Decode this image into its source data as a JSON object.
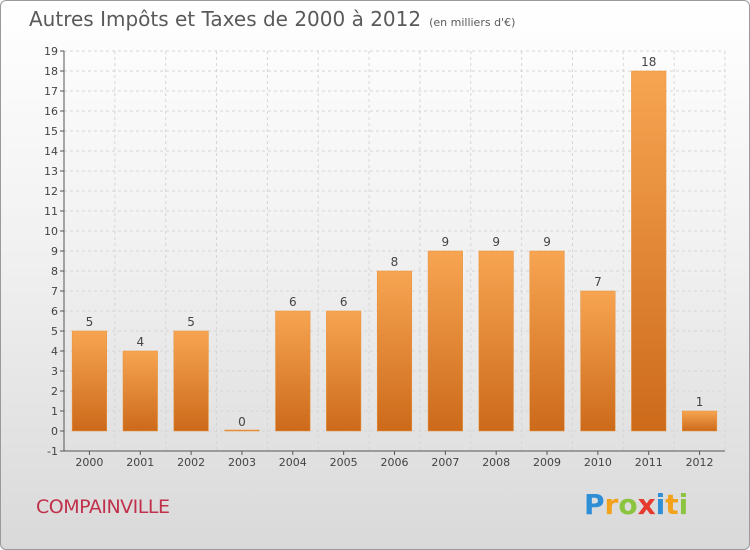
{
  "header": {
    "title": "Autres Impôts et Taxes de 2000 à 2012",
    "subtitle": "(en milliers d'€)"
  },
  "footer": {
    "commune": "COMPAINVILLE",
    "logo_letters": [
      "P",
      "r",
      "o",
      "x",
      "i",
      "t",
      "i"
    ],
    "logo_colors": [
      "#2f8fd6",
      "#f2a21b",
      "#8bc43f",
      "#e63a2e",
      "#2f8fd6",
      "#f2a21b",
      "#8bc43f"
    ]
  },
  "chart_data": {
    "type": "bar",
    "title": "Autres Impôts et Taxes de 2000 à 2012",
    "subtitle": "(en milliers d'€)",
    "xlabel": "",
    "ylabel": "",
    "categories": [
      "2000",
      "2001",
      "2002",
      "2003",
      "2004",
      "2005",
      "2006",
      "2007",
      "2008",
      "2009",
      "2010",
      "2011",
      "2012"
    ],
    "values": [
      5,
      4,
      5,
      0,
      6,
      6,
      8,
      9,
      9,
      9,
      7,
      18,
      1
    ],
    "value_labels": [
      "5",
      "4",
      "5",
      "0",
      "6",
      "6",
      "8",
      "9",
      "9",
      "9",
      "7",
      "18",
      "1"
    ],
    "ylim": [
      -1,
      19
    ],
    "yticks": [
      "-1",
      "0",
      "1",
      "2",
      "3",
      "4",
      "5",
      "6",
      "7",
      "8",
      "9",
      "10",
      "11",
      "12",
      "13",
      "14",
      "15",
      "16",
      "17",
      "18",
      "19"
    ],
    "grid": true,
    "bar_color": "#f0923a"
  }
}
